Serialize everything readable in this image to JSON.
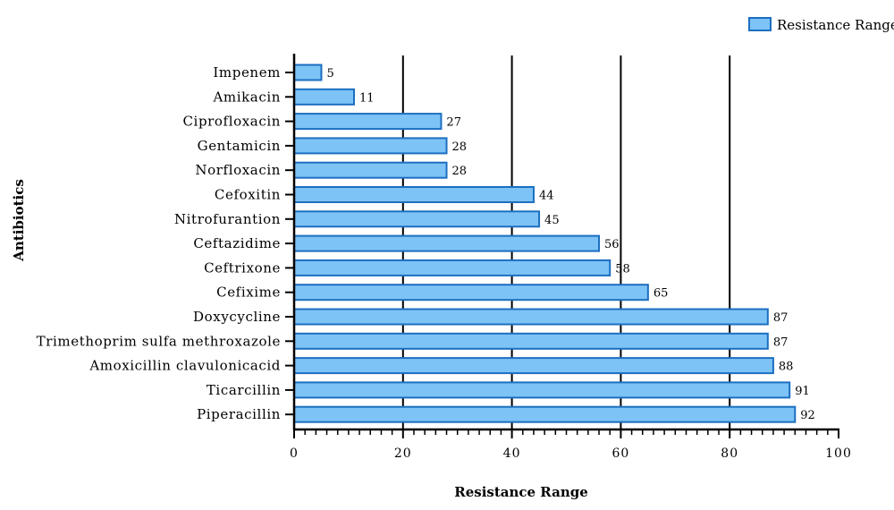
{
  "chart_data": {
    "type": "bar",
    "orientation": "horizontal",
    "categories": [
      "Impenem",
      "Amikacin",
      "Ciprofloxacin",
      "Gentamicin",
      "Norfloxacin",
      "Cefoxitin",
      "Nitrofurantion",
      "Ceftazidime",
      "Ceftrixone",
      "Cefixime",
      "Doxycycline",
      "Trimethoprim sulfa methroxazole",
      "Amoxicillin clavulonicacid",
      "Ticarcillin",
      "Piperacillin"
    ],
    "series": [
      {
        "name": "Resistance Range",
        "values": [
          5,
          11,
          27,
          28,
          28,
          44,
          45,
          56,
          58,
          65,
          87,
          87,
          88,
          91,
          92
        ],
        "color": "#7ec3f6",
        "border_color": "#1c6fc0"
      }
    ],
    "xlabel": "Resistance Range",
    "ylabel": "Antibiotics",
    "xlim": [
      0,
      100
    ],
    "x_ticks": [
      "0",
      "20",
      "40",
      "60",
      "80",
      "100"
    ],
    "grid": "vertical",
    "legend": "top-right"
  }
}
